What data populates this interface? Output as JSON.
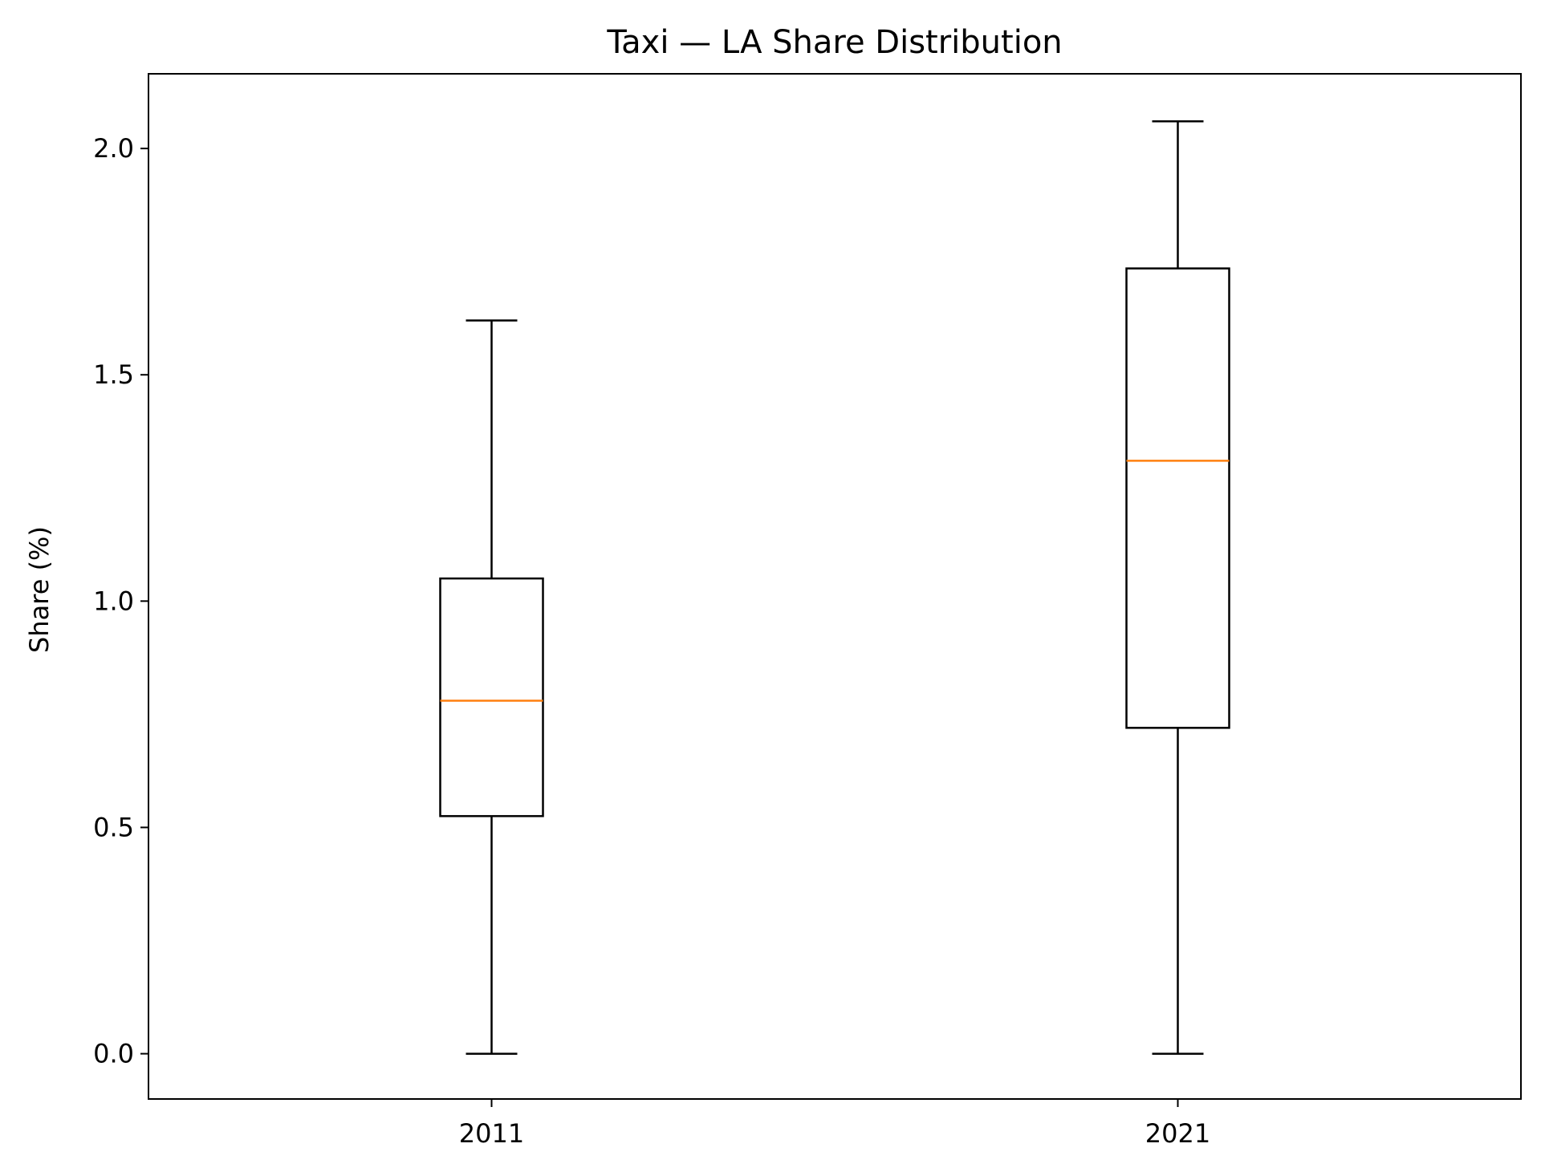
{
  "chart_data": {
    "type": "box",
    "title": "Taxi — LA Share Distribution",
    "xlabel": "",
    "ylabel": "Share (%)",
    "categories": [
      "2011",
      "2021"
    ],
    "boxes": [
      {
        "label": "2011",
        "whisker_low": 0.0,
        "q1": 0.525,
        "median": 0.78,
        "q3": 1.05,
        "whisker_high": 1.62
      },
      {
        "label": "2021",
        "whisker_low": 0.0,
        "q1": 0.72,
        "median": 1.31,
        "q3": 1.735,
        "whisker_high": 2.06
      }
    ],
    "ylim": [
      -0.1,
      2.165
    ],
    "yticks": [
      0.0,
      0.5,
      1.0,
      1.5,
      2.0
    ],
    "ytick_labels": [
      "0.0",
      "0.5",
      "1.0",
      "1.5",
      "2.0"
    ],
    "grid": false,
    "colors": {
      "box": "#000000",
      "median": "#ff7f0e",
      "background": "#ffffff"
    }
  }
}
